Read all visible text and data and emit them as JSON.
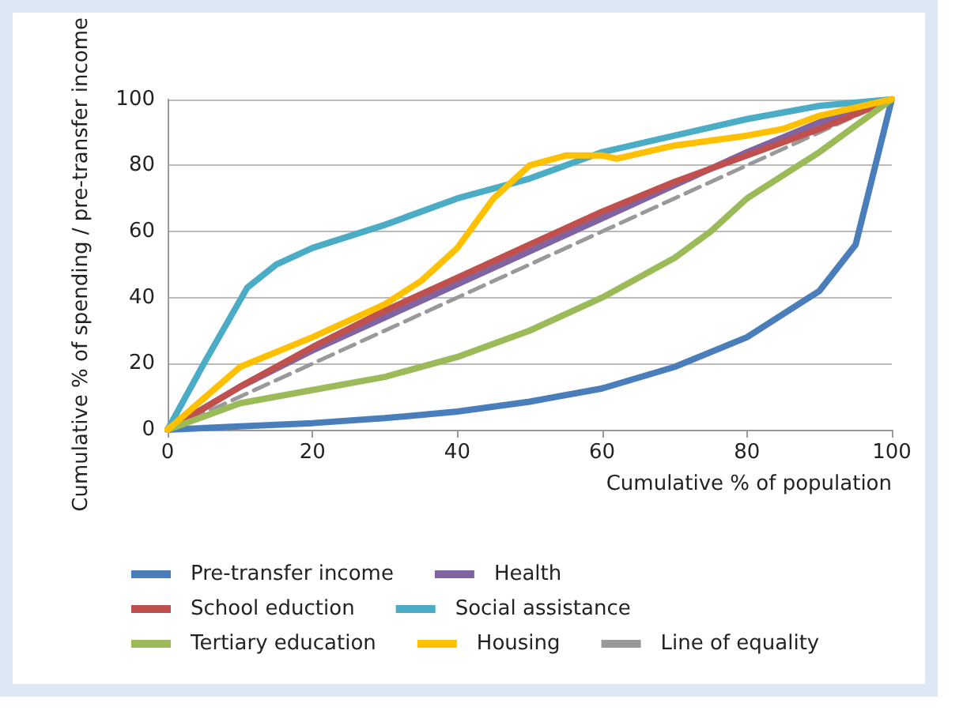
{
  "chart_data": {
    "type": "line",
    "xlabel": "Cumulative % of population",
    "ylabel": "Cumulative % of spending / pre-transfer income",
    "xlim": [
      0,
      100
    ],
    "xticks": [
      0,
      20,
      40,
      60,
      80,
      100
    ],
    "ylim": [
      0,
      100
    ],
    "yticks": [
      0,
      20,
      40,
      60,
      80,
      100
    ],
    "grid": "y",
    "legend": "bottom",
    "marker": "none",
    "line_style": "solid",
    "series": [
      {
        "name": "Pre-transfer income",
        "color": "#4a7ebb",
        "x": [
          0,
          10,
          20,
          30,
          40,
          50,
          60,
          70,
          80,
          90,
          95,
          100
        ],
        "values": [
          0,
          1,
          2,
          3.5,
          5.5,
          8.5,
          12.5,
          19,
          28,
          42,
          56,
          100
        ]
      },
      {
        "name": "Health",
        "color": "#8064a2",
        "x": [
          0,
          10,
          20,
          30,
          40,
          50,
          60,
          70,
          80,
          90,
          100
        ],
        "values": [
          0,
          13,
          24,
          34,
          44,
          54,
          64,
          74,
          84,
          93,
          100
        ]
      },
      {
        "name": "School eduction",
        "color": "#c0504d",
        "x": [
          0,
          10,
          20,
          30,
          40,
          50,
          60,
          70,
          80,
          90,
          100
        ],
        "values": [
          0,
          13,
          25,
          36,
          46,
          56,
          66,
          75,
          83,
          91,
          100
        ]
      },
      {
        "name": "Social assistance",
        "color": "#4bacc6",
        "x": [
          0,
          5,
          11,
          15,
          20,
          30,
          40,
          50,
          60,
          70,
          80,
          90,
          100
        ],
        "values": [
          0,
          20,
          43,
          50,
          55,
          62,
          70,
          76,
          84,
          89,
          94,
          98,
          100
        ]
      },
      {
        "name": "Tertiary education",
        "color": "#9bbb59",
        "x": [
          0,
          10,
          20,
          30,
          40,
          50,
          60,
          70,
          75,
          80,
          90,
          100
        ],
        "values": [
          0,
          8,
          12,
          16,
          22,
          30,
          40,
          52,
          60,
          70,
          84,
          100
        ]
      },
      {
        "name": "Housing",
        "color": "#ffc000",
        "x": [
          0,
          10,
          20,
          30,
          35,
          40,
          45,
          50,
          55,
          60,
          62,
          70,
          80,
          85,
          90,
          100
        ],
        "values": [
          0,
          19,
          28,
          38,
          45,
          55,
          70,
          80,
          83,
          83,
          82,
          86,
          89,
          91,
          95,
          100
        ]
      },
      {
        "name": "Line of equality",
        "color": "#999999",
        "line_style": "dashed",
        "x": [
          0,
          100
        ],
        "values": [
          0,
          100
        ]
      }
    ]
  }
}
